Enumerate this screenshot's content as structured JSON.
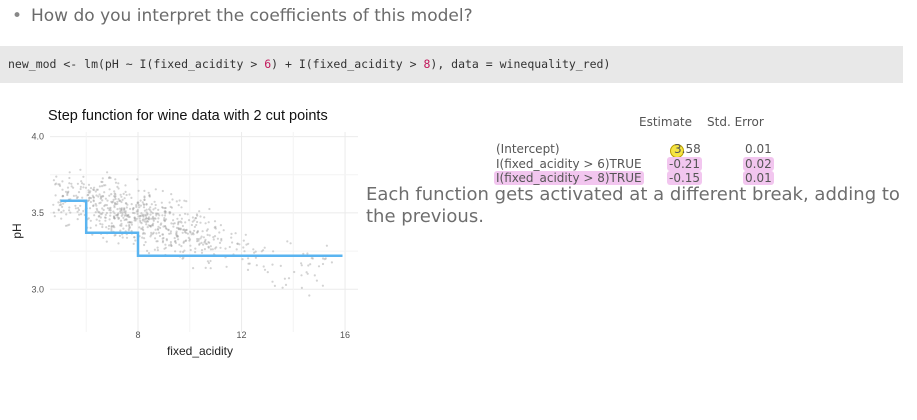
{
  "question": "How do you interpret the coefficients of this model?",
  "code": {
    "part1": "new_mod <- lm(pH ~ I(fixed_acidity > ",
    "num1": "6",
    "part2": ") + I(fixed_acidity > ",
    "num2": "8",
    "part3": "), data = winequality_red)"
  },
  "chart_data": {
    "type": "scatter",
    "title": "Step function for wine data with 2 cut points",
    "xlabel": "fixed_acidity",
    "ylabel": "pH",
    "xlim": [
      4.6,
      16.5
    ],
    "ylim": [
      2.72,
      4.03
    ],
    "x_ticks": [
      "8",
      "12",
      "16"
    ],
    "x_tick_values": [
      8,
      12,
      16
    ],
    "y_ticks": [
      "3.0",
      "3.5",
      "4.0"
    ],
    "y_tick_values": [
      3.0,
      3.5,
      4.0
    ],
    "grid": true,
    "point_color": "#9e9e9e",
    "line_color": "#5ab4f0",
    "step_fit": {
      "x": [
        5.0,
        6.0,
        6.0,
        8.0,
        8.0,
        15.9
      ],
      "y": [
        3.58,
        3.58,
        3.37,
        3.37,
        3.22,
        3.22
      ]
    },
    "scatter_density": {
      "x_range": [
        4.6,
        15.9
      ],
      "y_range": [
        2.74,
        4.01
      ],
      "note_trend": "pH decreases as fixed_acidity increases"
    }
  },
  "table": {
    "headers": [
      "Estimate",
      "Std. Error"
    ],
    "rows": [
      {
        "label": "(Intercept)",
        "estimate": "3.58",
        "se": "0.01"
      },
      {
        "label": "I(fixed_acidity > 6)TRUE",
        "estimate": "-0.21",
        "se": "0.02"
      },
      {
        "label": "I(fixed_acidity > 8)TRUE",
        "estimate": "-0.15",
        "se": "0.01"
      }
    ],
    "highlight_color": "#f2c6ef",
    "cursor_color": "#f5e442"
  },
  "explanation": "Each function gets activated at a different break, adding to the previous."
}
